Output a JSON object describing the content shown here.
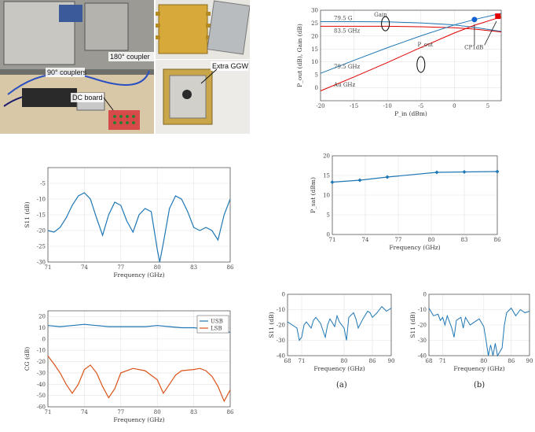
{
  "photo": {
    "labels": {
      "couplers_90": "90° couplers",
      "coupler_180": "180° coupler",
      "dc_board": "DC board",
      "extra_ggw": "Extra GGW"
    }
  },
  "colors": {
    "blue": "#1f77b4",
    "red": "#e00000",
    "orange": "#d95319"
  },
  "chart_data": [
    {
      "id": "gain-power",
      "type": "line",
      "xlabel": "P_in (dBm)",
      "ylabel": "P_out (dB), Gain (dB)",
      "xticks": [
        "-20",
        "-15",
        "-10",
        "-5",
        "0",
        "5"
      ],
      "xlim": [
        -20,
        7
      ],
      "ylim": [
        -5,
        30
      ],
      "yticks": [
        0,
        5,
        10,
        15,
        20,
        25,
        30
      ],
      "annotations": {
        "gain": "Gain",
        "pout": "P_out",
        "p1db": "CP1dB",
        "g_hi": "79.5 G",
        "g_lo": "83.5 GHz",
        "p_hi": "79.5 GHz",
        "p_lo": "Au  GHz"
      },
      "series": [
        {
          "x": [
            -20,
            -15,
            -10,
            -5,
            0,
            3,
            7
          ],
          "y": [
            25.6,
            25.6,
            25.5,
            25.1,
            24.3,
            23.4,
            21.8
          ]
        },
        {
          "x": [
            -20,
            -15,
            -10,
            -5,
            0,
            3,
            7
          ],
          "y": [
            23.8,
            23.8,
            23.8,
            23.6,
            23.2,
            22.7,
            21.6
          ]
        },
        {
          "x": [
            -20,
            -15,
            -10,
            -5,
            0,
            3,
            7
          ],
          "y": [
            5.6,
            10.6,
            15.5,
            20.1,
            24.3,
            26.4,
            28.8
          ]
        },
        {
          "x": [
            -20,
            -15,
            -10,
            -5,
            0,
            3,
            7
          ],
          "y": [
            -1.2,
            4.2,
            9.8,
            15.6,
            21.2,
            24.2,
            27.4
          ]
        }
      ],
      "points": [
        {
          "x": 3,
          "y": 26.4
        },
        {
          "x": 6.5,
          "y": 27.7
        }
      ]
    },
    {
      "id": "s11-freq",
      "type": "line",
      "xlabel": "Frequency (GHz)",
      "ylabel": "S11 (dB)",
      "xticks": [
        "71",
        "74",
        "77",
        "80",
        "83",
        "86"
      ],
      "yticks": [
        "-5",
        "-10",
        "-15",
        "-20",
        "-25",
        "-30"
      ],
      "xlim": [
        71,
        86
      ],
      "ylim": [
        -30,
        0
      ],
      "series": [
        {
          "x": [
            71,
            71.5,
            72,
            72.5,
            73,
            73.5,
            74,
            74.5,
            75,
            75.5,
            76,
            76.5,
            77,
            77.5,
            78,
            78.5,
            79,
            79.5,
            80,
            80.2,
            80.5,
            81,
            81.5,
            82,
            82.5,
            83,
            83.5,
            84,
            84.5,
            85,
            85.5,
            86
          ],
          "y": [
            -20,
            -20.5,
            -19,
            -16,
            -12,
            -9,
            -8,
            -10,
            -16,
            -21.5,
            -15,
            -11,
            -12,
            -17,
            -20.5,
            -15,
            -13,
            -14,
            -26,
            -30,
            -24,
            -13,
            -9,
            -10,
            -14,
            -19,
            -20,
            -19,
            -20,
            -23,
            -15,
            -10
          ]
        }
      ]
    },
    {
      "id": "pout-freq",
      "type": "line",
      "xlabel": "Frequency (GHz)",
      "ylabel": "P_sat (dBm)",
      "xticks": [
        "71",
        "74",
        "77",
        "80",
        "83",
        "86"
      ],
      "yticks": [
        "20",
        "15",
        "10",
        "5",
        "0"
      ],
      "xlim": [
        71,
        86
      ],
      "ylim": [
        0,
        20
      ],
      "series": [
        {
          "x": [
            71,
            73.5,
            76,
            80.5,
            83,
            86
          ],
          "y": [
            13.3,
            13.8,
            14.6,
            15.8,
            15.9,
            16.0
          ]
        }
      ]
    },
    {
      "id": "usb-lsb",
      "type": "line",
      "xlabel": "Frequency (GHz)",
      "ylabel": "CG (dB)",
      "xticks": [
        "71",
        "74",
        "77",
        "80",
        "83",
        "86"
      ],
      "yticks": [
        "20",
        "10",
        "0",
        "-10",
        "-20",
        "-30",
        "-40",
        "-50",
        "-60"
      ],
      "xlim": [
        71,
        86
      ],
      "ylim": [
        -60,
        25
      ],
      "legend": [
        "USB",
        "LSB"
      ],
      "series": [
        {
          "name": "USB",
          "x": [
            71,
            72,
            73,
            74,
            75,
            76,
            77,
            78,
            79,
            80,
            81,
            82,
            83,
            84,
            85,
            86
          ],
          "y": [
            12,
            11,
            12,
            13,
            12,
            11,
            11,
            11,
            11,
            12,
            11,
            10,
            10,
            9,
            8,
            6
          ]
        },
        {
          "name": "LSB",
          "x": [
            71,
            71.5,
            72,
            72.5,
            73,
            73.5,
            74,
            74.5,
            75,
            75.5,
            76,
            76.5,
            77,
            78,
            79,
            80,
            80.5,
            81,
            81.5,
            82,
            83,
            83.5,
            84,
            84.5,
            85,
            85.5,
            86
          ],
          "y": [
            -15,
            -22,
            -30,
            -40,
            -48,
            -40,
            -27,
            -23,
            -30,
            -42,
            -52,
            -44,
            -30,
            -26,
            -28,
            -36,
            -48,
            -40,
            -32,
            -28,
            -27,
            -26,
            -28,
            -33,
            -42,
            -55,
            -45
          ]
        }
      ]
    },
    {
      "id": "s11-a",
      "type": "line",
      "xlabel": "Frequency (GHz)",
      "ylabel": "S11 (dB)",
      "xticks": [
        "68",
        "71",
        "80",
        "86",
        "90"
      ],
      "yticks": [
        "0",
        "-10",
        "-20",
        "-30",
        "-40"
      ],
      "xlim": [
        68,
        90
      ],
      "ylim": [
        -40,
        0
      ],
      "caption": "(a)",
      "series": [
        {
          "x": [
            68,
            69,
            70,
            70.5,
            71,
            71.5,
            72,
            73,
            73.5,
            74,
            75,
            76,
            76.5,
            77,
            78,
            78.5,
            79,
            80,
            80.5,
            81,
            82,
            82.5,
            83,
            84,
            85,
            85.5,
            86,
            87,
            88,
            89,
            90
          ],
          "y": [
            -18,
            -20,
            -22,
            -30,
            -28,
            -20,
            -18,
            -22,
            -17,
            -15,
            -19,
            -28,
            -20,
            -16,
            -21,
            -14,
            -18,
            -22,
            -30,
            -15,
            -12,
            -16,
            -22,
            -16,
            -11,
            -12,
            -15,
            -12,
            -8,
            -11,
            -9
          ]
        }
      ]
    },
    {
      "id": "s11-b",
      "type": "line",
      "xlabel": "Frequency (GHz)",
      "ylabel": "S11 (dB)",
      "xticks": [
        "68",
        "71",
        "80",
        "86",
        "90"
      ],
      "yticks": [
        "0",
        "-10",
        "-20",
        "-30",
        "-40"
      ],
      "xlim": [
        68,
        90
      ],
      "ylim": [
        -40,
        0
      ],
      "caption": "(b)",
      "series": [
        {
          "x": [
            68,
            69,
            70,
            70.5,
            71,
            71.5,
            72,
            73,
            73.5,
            74,
            75,
            75.5,
            76,
            77,
            78,
            79,
            80,
            80.5,
            81,
            81.5,
            82,
            82.5,
            83,
            84,
            84.5,
            85,
            86,
            87,
            88,
            89,
            90
          ],
          "y": [
            -9,
            -14,
            -13,
            -17,
            -15,
            -20,
            -14,
            -22,
            -28,
            -17,
            -15,
            -22,
            -15,
            -20,
            -18,
            -16,
            -21,
            -30,
            -40,
            -33,
            -40,
            -32,
            -40,
            -35,
            -20,
            -12,
            -9,
            -14,
            -10,
            -12,
            -11
          ]
        }
      ]
    }
  ]
}
